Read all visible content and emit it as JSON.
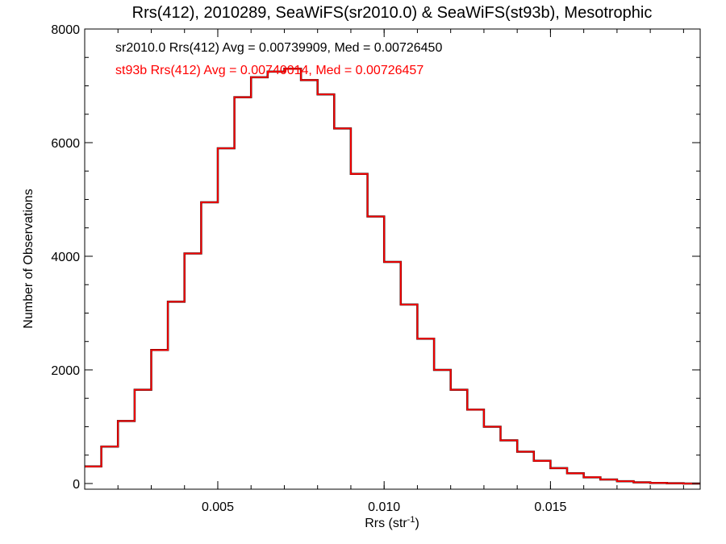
{
  "chart_data": {
    "type": "line",
    "title": "Rrs(412), 2010289, SeaWiFS(sr2010.0) & SeaWiFS(st93b), Mesotrophic",
    "xlabel": "Rrs (str",
    "xlabel_sup": "-1",
    "xlabel_close": ")",
    "ylabel": "Number of Observations",
    "xlim": [
      0.001,
      0.0195
    ],
    "ylim": [
      -100,
      8000
    ],
    "x_ticks": [
      0.005,
      0.01,
      0.015
    ],
    "x_tick_labels": [
      "0.005",
      "0.010",
      "0.015"
    ],
    "y_ticks": [
      0,
      2000,
      4000,
      6000,
      8000
    ],
    "y_tick_labels": [
      "0",
      "2000",
      "4000",
      "6000",
      "8000"
    ],
    "grid": false,
    "legend_position": "top-left",
    "step": true,
    "x": [
      0.001,
      0.0015,
      0.002,
      0.0025,
      0.003,
      0.0035,
      0.004,
      0.0045,
      0.005,
      0.0055,
      0.006,
      0.0065,
      0.007,
      0.0075,
      0.008,
      0.0085,
      0.009,
      0.0095,
      0.01,
      0.0105,
      0.011,
      0.0115,
      0.012,
      0.0125,
      0.013,
      0.0135,
      0.014,
      0.0145,
      0.015,
      0.0155,
      0.016,
      0.0165,
      0.017,
      0.0175,
      0.018,
      0.0185,
      0.019,
      0.0195
    ],
    "series": [
      {
        "name": "sr2010.0",
        "color": "#000000",
        "legend_text": "sr2010.0 Rrs(412) Avg = 0.00739909, Med = 0.00726450",
        "values": [
          300,
          650,
          1100,
          1650,
          2350,
          3200,
          4050,
          4950,
          5900,
          6800,
          7150,
          7250,
          7300,
          7100,
          6850,
          6250,
          5450,
          4700,
          3900,
          3150,
          2550,
          2000,
          1650,
          1300,
          1000,
          760,
          560,
          400,
          270,
          180,
          110,
          70,
          40,
          20,
          10,
          5,
          0,
          0
        ]
      },
      {
        "name": "st93b",
        "color": "#ff0000",
        "legend_text": "st93b Rrs(412) Avg = 0.00740014, Med = 0.00726457",
        "values": [
          300,
          650,
          1100,
          1650,
          2350,
          3200,
          4050,
          4950,
          5900,
          6800,
          7150,
          7250,
          7300,
          7100,
          6850,
          6250,
          5450,
          4700,
          3900,
          3150,
          2550,
          2000,
          1650,
          1300,
          1000,
          760,
          560,
          400,
          270,
          180,
          110,
          70,
          40,
          20,
          10,
          5,
          0,
          0
        ]
      }
    ]
  }
}
